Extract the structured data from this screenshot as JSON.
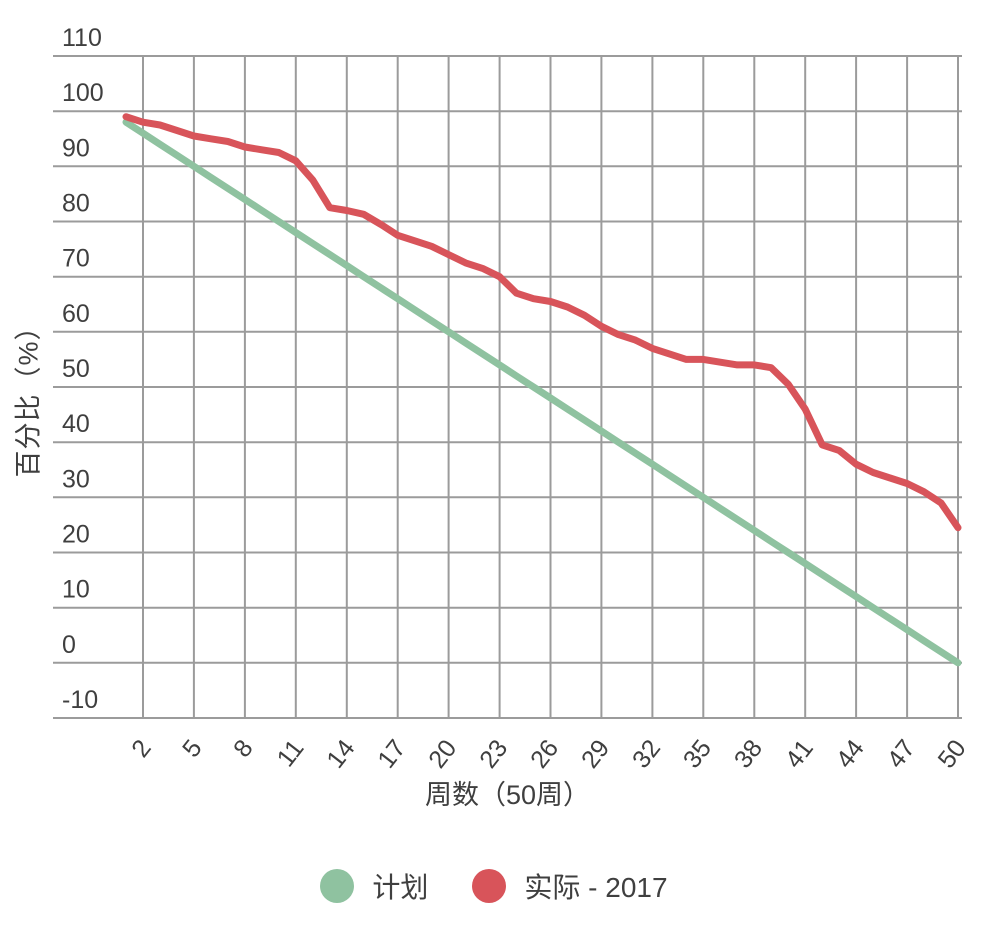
{
  "colors": {
    "background": "#FFFFFF",
    "grid": "#9B9B9B",
    "text": "#3F3F3F",
    "plan_green": "#8FC2A0",
    "actual_red": "#D8545A"
  },
  "chart_data": {
    "type": "line",
    "title": "",
    "xlabel": "周数（50周）",
    "ylabel": "百分比（%）",
    "grid": true,
    "legend_position": "bottom",
    "xlim": [
      1,
      50
    ],
    "ylim": [
      -10,
      110
    ],
    "x_ticks": [
      2,
      5,
      8,
      11,
      14,
      17,
      20,
      23,
      26,
      29,
      32,
      35,
      38,
      41,
      44,
      47,
      50
    ],
    "y_ticks": [
      -10,
      0,
      10,
      20,
      30,
      40,
      50,
      60,
      70,
      80,
      90,
      100,
      110
    ],
    "x": [
      1,
      2,
      3,
      4,
      5,
      6,
      7,
      8,
      9,
      10,
      11,
      12,
      13,
      14,
      15,
      16,
      17,
      18,
      19,
      20,
      21,
      22,
      23,
      24,
      25,
      26,
      27,
      28,
      29,
      30,
      31,
      32,
      33,
      34,
      35,
      36,
      37,
      38,
      39,
      40,
      41,
      42,
      43,
      44,
      45,
      46,
      47,
      48,
      49,
      50
    ],
    "series": [
      {
        "name": "计划",
        "color": "#8FC2A0",
        "values": [
          98,
          96,
          94,
          92,
          90,
          88,
          86,
          84,
          82,
          80,
          78,
          76,
          74,
          72,
          70,
          68,
          66,
          64,
          62,
          60,
          58,
          56,
          54,
          52,
          50,
          48,
          46,
          44,
          42,
          40,
          38,
          36,
          34,
          32,
          30,
          28,
          26,
          24,
          22,
          20,
          18,
          16,
          14,
          12,
          10,
          8,
          6,
          4,
          2,
          0
        ]
      },
      {
        "name": "实际 - 2017",
        "color": "#D8545A",
        "values": [
          99,
          98,
          97.5,
          96.5,
          95.5,
          95,
          94.5,
          93.5,
          93,
          92.5,
          91,
          87.5,
          82.5,
          82,
          81.3,
          79.5,
          77.5,
          76.5,
          75.5,
          74,
          72.5,
          71.5,
          70,
          67,
          66,
          65.5,
          64.5,
          63,
          61,
          59.5,
          58.5,
          57,
          56,
          55,
          55,
          54.5,
          54,
          54,
          53.5,
          50.5,
          46,
          39.5,
          38.5,
          36,
          34.5,
          33.5,
          32.5,
          31,
          29,
          24.5
        ]
      }
    ]
  }
}
